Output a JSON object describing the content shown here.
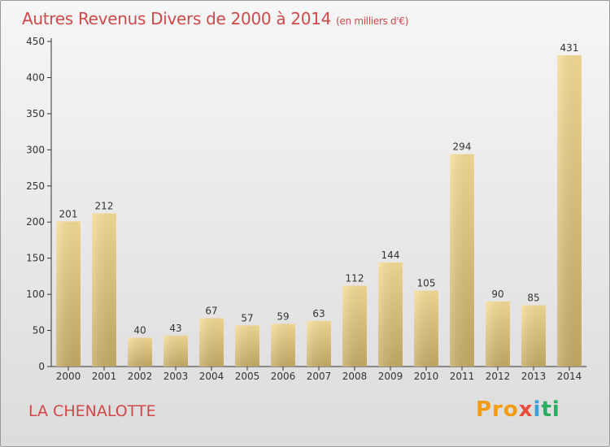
{
  "header": {
    "title": "Autres Revenus Divers de 2000 à 2014",
    "unit": "(en milliers d'€)"
  },
  "footer": {
    "commune": "LA CHENALOTTE",
    "brand": "Proxiti"
  },
  "colors": {
    "title": "#d04848",
    "bar_light": "#f5dc96",
    "bar_dark": "#c6ad68",
    "axis": "#333333"
  },
  "chart_data": {
    "type": "bar",
    "title": "Autres Revenus Divers de 2000 à 2014",
    "subtitle": "(en milliers d'€)",
    "xlabel": "",
    "ylabel": "",
    "categories": [
      "2000",
      "2001",
      "2002",
      "2003",
      "2004",
      "2005",
      "2006",
      "2007",
      "2008",
      "2009",
      "2010",
      "2011",
      "2012",
      "2013",
      "2014"
    ],
    "values": [
      201,
      212,
      40,
      43,
      67,
      57,
      59,
      63,
      112,
      144,
      105,
      294,
      90,
      85,
      431
    ],
    "ylim": [
      0,
      450
    ],
    "yticks": [
      0,
      50,
      100,
      150,
      200,
      250,
      300,
      350,
      400,
      450
    ],
    "grid": false,
    "data_labels": true
  }
}
